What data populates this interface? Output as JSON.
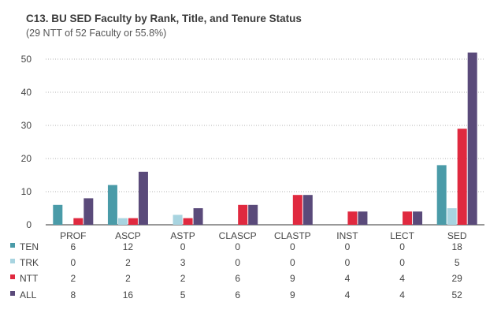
{
  "chart_data": {
    "type": "bar",
    "title": "C13. BU SED Faculty by Rank, Title, and Tenure Status",
    "subtitle": "(29 NTT of 52 Faculty or 55.8%)",
    "categories": [
      "PROF",
      "ASCP",
      "ASTP",
      "CLASCP",
      "CLASTP",
      "INST",
      "LECT",
      "SED"
    ],
    "ylim": [
      0,
      50
    ],
    "yticks": [
      0,
      10,
      20,
      30,
      40,
      50
    ],
    "series": [
      {
        "name": "TEN",
        "color": "#4a9ba8",
        "values": [
          6,
          12,
          0,
          0,
          0,
          0,
          0,
          18
        ]
      },
      {
        "name": "TRK",
        "color": "#a8d4e0",
        "values": [
          0,
          2,
          3,
          0,
          0,
          0,
          0,
          5
        ]
      },
      {
        "name": "NTT",
        "color": "#e0293f",
        "values": [
          2,
          2,
          2,
          6,
          9,
          4,
          4,
          29
        ]
      },
      {
        "name": "ALL",
        "color": "#5a4a7a",
        "values": [
          8,
          16,
          5,
          6,
          9,
          4,
          4,
          52
        ]
      }
    ],
    "grid": true
  }
}
